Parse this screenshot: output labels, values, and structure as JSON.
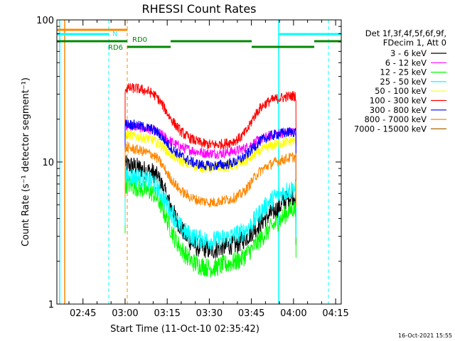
{
  "chart_data": {
    "type": "line",
    "title": "RHESSI Count Rates",
    "xlabel": "Start Time (11-Oct-10 02:35:42)",
    "ylabel": "Count Rate (s⁻¹ detector segment⁻¹)",
    "y_scale": "log",
    "ylim": [
      1,
      100
    ],
    "y_tick_labels": [
      "1",
      "10",
      "100"
    ],
    "xlim": [
      "02:35:42",
      "04:17:00"
    ],
    "x_tick_labels": [
      "02:45",
      "03:00",
      "03:15",
      "03:30",
      "03:45",
      "04:00",
      "04:15"
    ],
    "x_ticks_min": [
      9.3,
      24.3,
      39.3,
      54.3,
      69.3,
      84.3,
      99.3
    ],
    "x_range_min": [
      0,
      101.3
    ],
    "legend_header": [
      "Det 1f,3f,4f,5f,6f,9f,",
      "FDecim 1, Att 0"
    ],
    "legend_placement": "right",
    "grid": false,
    "series": [
      {
        "name": "3 - 6 keV",
        "color": "#000000",
        "x": [
          24.3,
          25.5,
          28,
          31,
          34,
          36,
          38,
          40,
          42,
          44,
          46,
          48,
          50,
          52,
          54,
          56,
          58,
          60,
          62,
          64,
          66,
          68,
          70,
          72,
          74,
          76,
          78,
          80,
          82,
          84,
          85.2
        ],
        "y": [
          9.5,
          9.5,
          9.3,
          8.8,
          8.5,
          7.8,
          6.5,
          5.2,
          4.2,
          3.5,
          3.0,
          2.7,
          2.5,
          2.5,
          2.4,
          2.4,
          2.5,
          2.5,
          2.6,
          2.6,
          2.8,
          3.0,
          3.3,
          3.6,
          4.0,
          4.3,
          4.6,
          5.0,
          5.5,
          5.8,
          5.8
        ]
      },
      {
        "name": "6 - 12 keV",
        "color": "#ff00ff",
        "x": [
          24.3,
          25.5,
          28,
          31,
          34,
          36,
          38,
          40,
          42,
          44,
          46,
          48,
          50,
          52,
          54,
          56,
          58,
          60,
          62,
          64,
          66,
          68,
          70,
          72,
          74,
          76,
          78,
          80,
          82,
          84,
          85.2
        ],
        "y": [
          18,
          18,
          17.8,
          17.3,
          16.8,
          16.2,
          15.2,
          14.2,
          13.4,
          12.8,
          12.4,
          12.1,
          11.8,
          11.6,
          11.5,
          11.5,
          11.5,
          11.6,
          11.8,
          12.0,
          12.3,
          12.8,
          13.5,
          14.2,
          14.8,
          15.3,
          15.7,
          16.0,
          16.2,
          16.4,
          16.4
        ]
      },
      {
        "name": "12 - 25 keV",
        "color": "#00ff00",
        "x": [
          24.3,
          25.5,
          28,
          31,
          34,
          36,
          38,
          40,
          42,
          44,
          46,
          48,
          50,
          52,
          54,
          56,
          58,
          60,
          62,
          64,
          66,
          68,
          70,
          72,
          74,
          76,
          78,
          80,
          82,
          84,
          85.2
        ],
        "y": [
          7.0,
          7.0,
          6.7,
          6.4,
          6.1,
          5.5,
          4.5,
          3.6,
          2.9,
          2.5,
          2.2,
          2.0,
          1.9,
          1.85,
          1.8,
          1.8,
          1.85,
          1.9,
          1.95,
          2.0,
          2.1,
          2.3,
          2.5,
          2.8,
          3.1,
          3.4,
          3.7,
          4.0,
          4.4,
          4.7,
          4.7
        ]
      },
      {
        "name": "25 - 50 keV",
        "color": "#00ffff",
        "x": [
          24.3,
          25.5,
          28,
          31,
          34,
          36,
          38,
          40,
          42,
          44,
          46,
          48,
          50,
          52,
          54,
          56,
          58,
          60,
          62,
          64,
          66,
          68,
          70,
          72,
          74,
          76,
          78,
          80,
          82,
          84,
          85.2
        ],
        "y": [
          8.0,
          8.0,
          7.8,
          7.5,
          7.2,
          6.6,
          5.6,
          4.7,
          4.0,
          3.5,
          3.2,
          3.0,
          2.9,
          2.85,
          2.8,
          2.8,
          2.85,
          2.9,
          3.0,
          3.1,
          3.2,
          3.4,
          3.8,
          4.3,
          4.8,
          5.3,
          5.7,
          6.0,
          6.3,
          6.5,
          6.5
        ]
      },
      {
        "name": "50 - 100 keV",
        "color": "#ffff00",
        "x": [
          24.3,
          25.5,
          28,
          31,
          34,
          36,
          38,
          40,
          42,
          44,
          46,
          48,
          50,
          52,
          54,
          56,
          58,
          60,
          62,
          64,
          66,
          68,
          70,
          72,
          74,
          76,
          78,
          80,
          82,
          84,
          85.2
        ],
        "y": [
          15.5,
          15.5,
          15.2,
          14.8,
          14.3,
          13.6,
          12.6,
          11.6,
          10.8,
          10.2,
          9.8,
          9.5,
          9.3,
          9.2,
          9.1,
          9.1,
          9.2,
          9.3,
          9.4,
          9.6,
          9.9,
          10.3,
          11.0,
          11.8,
          12.4,
          12.9,
          13.3,
          13.6,
          13.9,
          14.1,
          14.1
        ]
      },
      {
        "name": "100 - 300 keV",
        "color": "#ff0000",
        "x": [
          24.3,
          25.5,
          28,
          31,
          34,
          36,
          38,
          40,
          42,
          44,
          46,
          48,
          50,
          52,
          54,
          56,
          58,
          60,
          62,
          64,
          66,
          68,
          70,
          72,
          74,
          76,
          78,
          80,
          82,
          84,
          85.2
        ],
        "y": [
          33,
          33,
          33,
          32,
          30.5,
          28,
          24.5,
          21,
          18.5,
          16.5,
          15.3,
          14.5,
          13.9,
          13.5,
          13.3,
          13.2,
          13.3,
          13.5,
          13.8,
          14.3,
          15.2,
          17.0,
          20.5,
          23.5,
          25.5,
          27,
          27.8,
          28.3,
          28.8,
          29.2,
          29.2
        ]
      },
      {
        "name": "300 - 800 keV",
        "color": "#0000ff",
        "x": [
          24.3,
          25.5,
          28,
          31,
          34,
          36,
          38,
          40,
          42,
          44,
          46,
          48,
          50,
          52,
          54,
          56,
          58,
          60,
          62,
          64,
          66,
          68,
          70,
          72,
          74,
          76,
          78,
          80,
          82,
          84,
          85.2
        ],
        "y": [
          18.5,
          18.5,
          18.2,
          17.6,
          17.0,
          16.0,
          14.5,
          13.0,
          11.9,
          11.1,
          10.5,
          10.0,
          9.7,
          9.5,
          9.4,
          9.4,
          9.5,
          9.6,
          9.8,
          10.1,
          10.6,
          11.4,
          12.6,
          13.8,
          14.6,
          15.2,
          15.6,
          15.9,
          16.1,
          16.3,
          16.3
        ]
      },
      {
        "name": "800 - 7000 keV",
        "color": "#ff8800",
        "x": [
          24.3,
          25.5,
          28,
          31,
          34,
          36,
          38,
          40,
          42,
          44,
          46,
          48,
          50,
          52,
          54,
          56,
          58,
          60,
          62,
          64,
          66,
          68,
          70,
          72,
          74,
          76,
          78,
          80,
          82,
          84,
          85.2
        ],
        "y": [
          12.5,
          12.5,
          12.3,
          11.8,
          11.3,
          10.5,
          9.2,
          7.9,
          7.0,
          6.3,
          5.9,
          5.6,
          5.4,
          5.3,
          5.2,
          5.2,
          5.3,
          5.4,
          5.5,
          5.7,
          6.0,
          6.6,
          7.6,
          8.5,
          9.1,
          9.6,
          10.0,
          10.3,
          10.6,
          10.8,
          10.8
        ]
      },
      {
        "name": "7000 - 15000 keV",
        "color": "#aa6600",
        "x": [],
        "y": []
      }
    ],
    "annotations": [
      {
        "label": "N",
        "color": "#00ffff"
      },
      {
        "label": "RD0",
        "color": "#008800"
      },
      {
        "label": "RD6",
        "color": "#008800"
      }
    ],
    "footer": "16-Oct-2021 15:55"
  }
}
